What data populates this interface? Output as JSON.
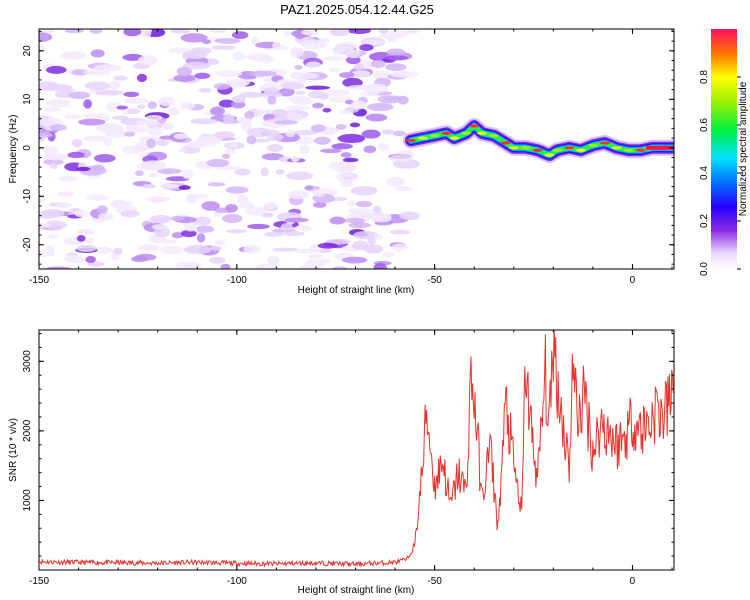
{
  "title": "PAZ1.2025.054.12.44.G25",
  "chart_data": [
    {
      "type": "heatmap",
      "xlabel": "Height of straight line (km)",
      "ylabel": "Frequency (Hz)",
      "xlim": [
        -150,
        10.5
      ],
      "ylim": [
        -25,
        24.5
      ],
      "x_ticks": [
        -150,
        -100,
        -50,
        0
      ],
      "y_ticks": [
        -20,
        -10,
        0,
        10,
        20
      ],
      "colorbar": {
        "label": "Normalized spectral amplitude",
        "range": [
          0,
          1
        ],
        "ticks": [
          "0.0",
          "0.2",
          "0.4",
          "0.6",
          "0.8"
        ]
      },
      "noise_region_x": [
        -150,
        -56
      ],
      "signal_track": {
        "x": [
          -56,
          -53,
          -50,
          -47,
          -45,
          -42,
          -40,
          -38,
          -35,
          -32,
          -30,
          -27,
          -24,
          -21,
          -19,
          -16,
          -13,
          -10,
          -7,
          -4,
          -1,
          2,
          5,
          8,
          10.5
        ],
        "frequency": [
          1.5,
          2,
          2.5,
          3,
          2,
          3,
          4.5,
          3,
          2.5,
          1,
          0,
          0,
          -0.5,
          -1.5,
          -0.5,
          0,
          -0.5,
          0.5,
          1,
          0,
          -0.5,
          -0.5,
          0,
          0,
          0
        ]
      }
    },
    {
      "type": "line",
      "xlabel": "Height of straight line (km)",
      "ylabel": "SNR (10 * v/v)",
      "xlim": [
        -150,
        10.5
      ],
      "ylim": [
        0,
        3450
      ],
      "x_ticks": [
        -150,
        -100,
        -50,
        0
      ],
      "y_ticks": [
        1000,
        2000,
        3000
      ],
      "color": "#e8322a",
      "series": [
        {
          "x": [
            -150,
            -140,
            -130,
            -120,
            -110,
            -100,
            -90,
            -80,
            -70,
            -60,
            -57,
            -55,
            -53,
            -52,
            -50,
            -48,
            -46,
            -44,
            -42,
            -41,
            -40,
            -38,
            -36,
            -34,
            -32,
            -30,
            -28,
            -27,
            -26,
            -24,
            -22,
            -21,
            -20,
            -19,
            -18,
            -16,
            -15,
            -14,
            -12,
            -10,
            -8,
            -6,
            -4,
            -2,
            0,
            2,
            4,
            6,
            8,
            10.5
          ],
          "values": [
            120,
            110,
            105,
            100,
            110,
            95,
            90,
            100,
            85,
            110,
            150,
            350,
            1500,
            2300,
            1200,
            1600,
            900,
            1400,
            1100,
            2700,
            2500,
            1000,
            1800,
            600,
            2400,
            1500,
            800,
            3000,
            2200,
            1300,
            2800,
            2000,
            3400,
            2700,
            2300,
            1500,
            3000,
            2200,
            2500,
            1700,
            2100,
            2000,
            1800,
            1900,
            2200,
            2000,
            2100,
            2300,
            2200,
            2600
          ]
        }
      ]
    }
  ]
}
